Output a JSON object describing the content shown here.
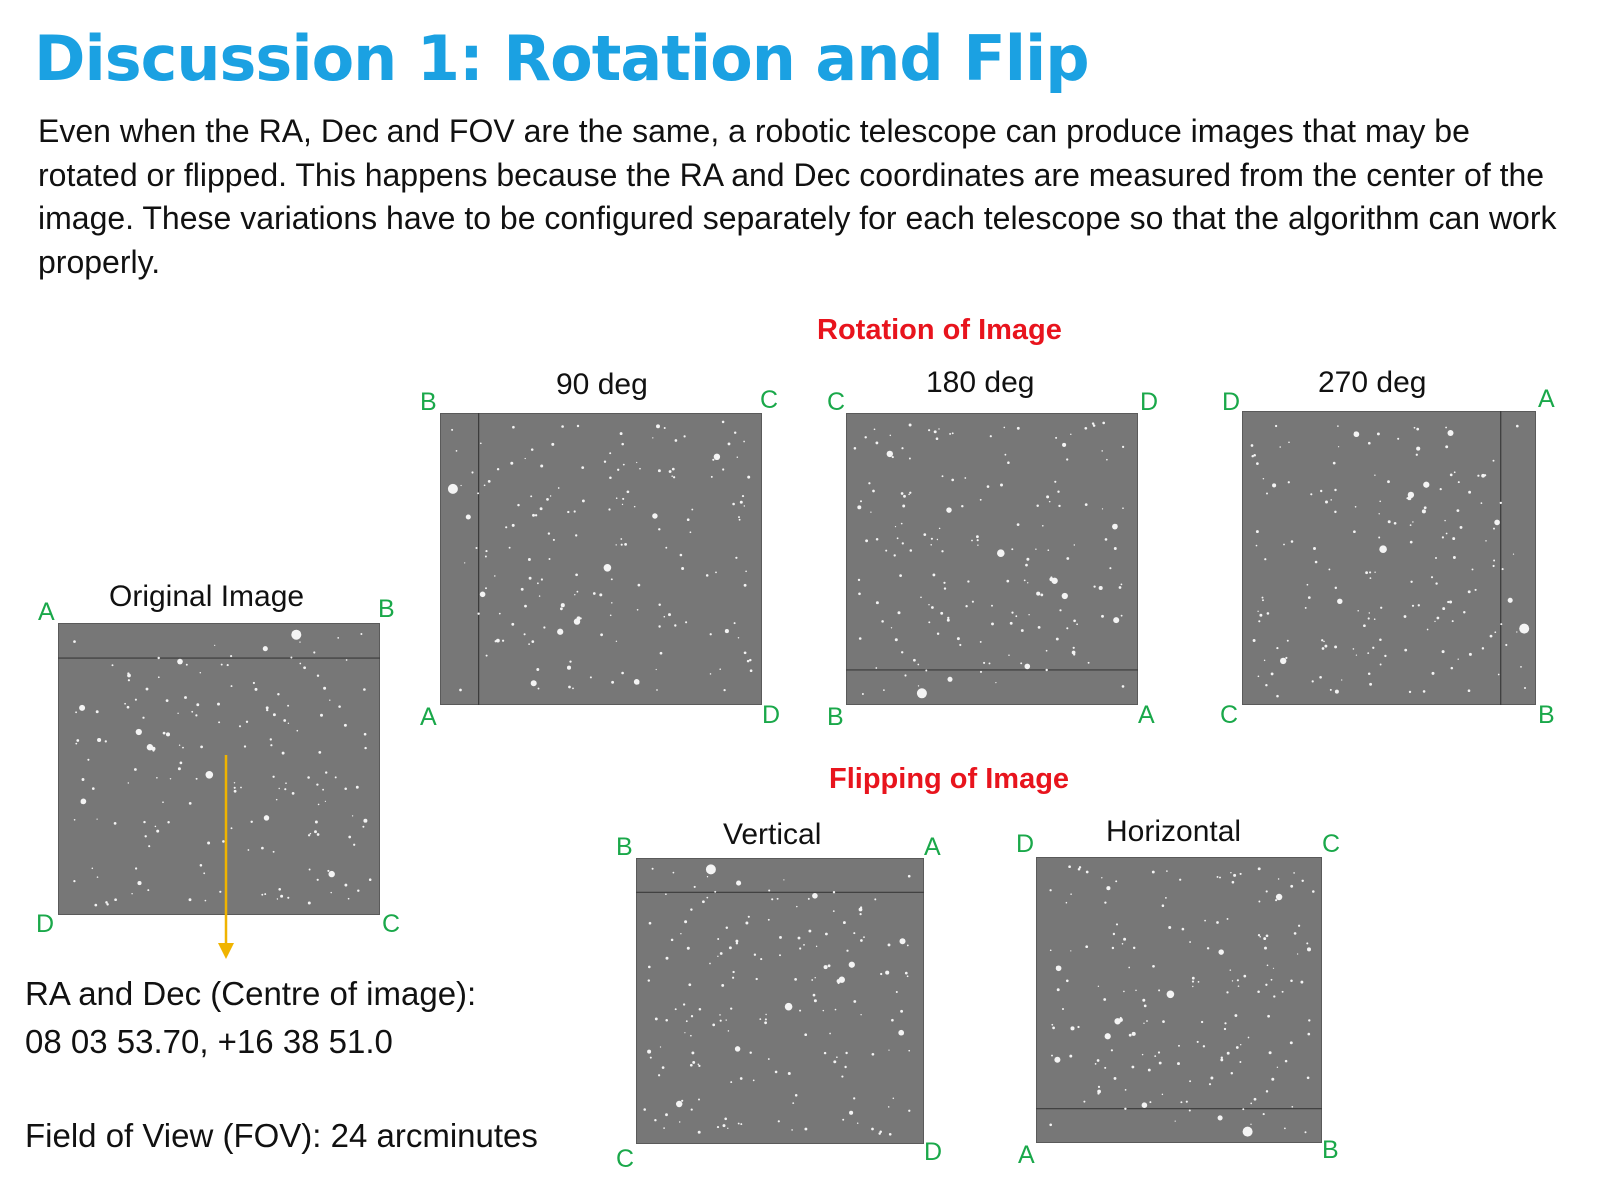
{
  "title": "Discussion 1: Rotation and Flip",
  "intro": "Even when the RA, Dec and FOV are the same, a robotic telescope can produce images that may be rotated or flipped. This happens because the RA and Dec coordinates are measured from the center of the image. These variations have to be configured separately for each telescope so that the algorithm can work properly.",
  "rotation_heading": "Rotation of Image",
  "flipping_heading": "Flipping of Image",
  "colors": {
    "title": "#1ba1e2",
    "heading": "#e8141d",
    "corner": "#1aa84a",
    "arrow": "#f0b400"
  },
  "original": {
    "caption": "Original Image",
    "tl": "A",
    "tr": "B",
    "bl": "D",
    "br": "C"
  },
  "rot90": {
    "caption": "90 deg",
    "tl": "B",
    "tr": "C",
    "bl": "A",
    "br": "D"
  },
  "rot180": {
    "caption": "180 deg",
    "tl": "C",
    "tr": "D",
    "bl": "B",
    "br": "A"
  },
  "rot270": {
    "caption": "270 deg",
    "tl": "D",
    "tr": "A",
    "bl": "C",
    "br": "B"
  },
  "vertical": {
    "caption": "Vertical",
    "tl": "B",
    "tr": "A",
    "bl": "C",
    "br": "D"
  },
  "horizontal": {
    "caption": "Horizontal",
    "tl": "D",
    "tr": "C",
    "bl": "A",
    "br": "B"
  },
  "coords": {
    "label": "RA and Dec (Centre of image):",
    "value": "08 03 53.70, +16 38 51.0",
    "fov": "Field of View (FOV): 24 arcminutes"
  }
}
